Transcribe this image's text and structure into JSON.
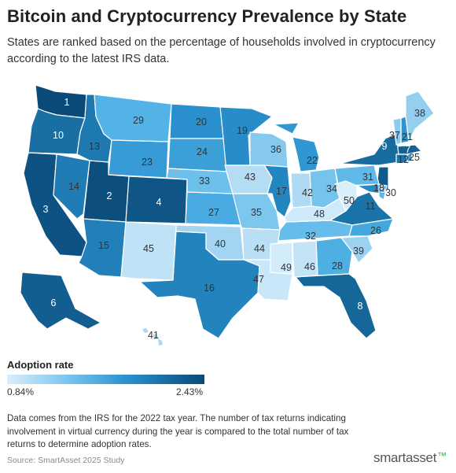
{
  "header": {
    "title": "Bitcoin and Cryptocurrency Prevalence by State",
    "subtitle": "States are ranked based on the percentage of households involved in cryptocurrency according to the latest IRS data."
  },
  "legend": {
    "title": "Adoption rate",
    "min_label": "0.84%",
    "max_label": "2.43%",
    "color_low": "#d9eefb",
    "color_high": "#0a4a78"
  },
  "map": {
    "states": [
      {
        "code": "WA",
        "rank": 1
      },
      {
        "code": "UT",
        "rank": 2
      },
      {
        "code": "CA",
        "rank": 3
      },
      {
        "code": "CO",
        "rank": 4
      },
      {
        "code": "NJ",
        "rank": 5
      },
      {
        "code": "AK",
        "rank": 6
      },
      {
        "code": "MA",
        "rank": 7
      },
      {
        "code": "FL",
        "rank": 8
      },
      {
        "code": "NY",
        "rank": 9
      },
      {
        "code": "OR",
        "rank": 10
      },
      {
        "code": "VA",
        "rank": 11
      },
      {
        "code": "CT",
        "rank": 12
      },
      {
        "code": "ID",
        "rank": 13
      },
      {
        "code": "NV",
        "rank": 14
      },
      {
        "code": "AZ",
        "rank": 15
      },
      {
        "code": "TX",
        "rank": 16
      },
      {
        "code": "IL",
        "rank": 17
      },
      {
        "code": "MD",
        "rank": 18
      },
      {
        "code": "MN",
        "rank": 19
      },
      {
        "code": "ND",
        "rank": 20
      },
      {
        "code": "NH",
        "rank": 21
      },
      {
        "code": "MI",
        "rank": 22
      },
      {
        "code": "WY",
        "rank": 23
      },
      {
        "code": "SD",
        "rank": 24
      },
      {
        "code": "RI",
        "rank": 25
      },
      {
        "code": "NC",
        "rank": 26
      },
      {
        "code": "KS",
        "rank": 27
      },
      {
        "code": "GA",
        "rank": 28
      },
      {
        "code": "MT",
        "rank": 29
      },
      {
        "code": "DE",
        "rank": 30
      },
      {
        "code": "PA",
        "rank": 31
      },
      {
        "code": "TN",
        "rank": 32
      },
      {
        "code": "NE",
        "rank": 33
      },
      {
        "code": "OH",
        "rank": 34
      },
      {
        "code": "MO",
        "rank": 35
      },
      {
        "code": "WI",
        "rank": 36
      },
      {
        "code": "VT",
        "rank": 37
      },
      {
        "code": "ME",
        "rank": 38
      },
      {
        "code": "SC",
        "rank": 39
      },
      {
        "code": "OK",
        "rank": 40
      },
      {
        "code": "HI",
        "rank": 41
      },
      {
        "code": "IN",
        "rank": 42
      },
      {
        "code": "IA",
        "rank": 43
      },
      {
        "code": "AR",
        "rank": 44
      },
      {
        "code": "NM",
        "rank": 45
      },
      {
        "code": "AL",
        "rank": 46
      },
      {
        "code": "LA",
        "rank": 47
      },
      {
        "code": "KY",
        "rank": 48
      },
      {
        "code": "MS",
        "rank": 49
      },
      {
        "code": "WV",
        "rank": 50
      }
    ]
  },
  "footer": {
    "note": "Data comes from the IRS for the 2022 tax year. The number of tax returns indicating involvement in virtual currency during the year is compared to the total number of tax returns to determine adoption rates.",
    "source": "Source: SmartAsset 2025 Study",
    "brand": "smartasset",
    "brand_mark": "™"
  }
}
